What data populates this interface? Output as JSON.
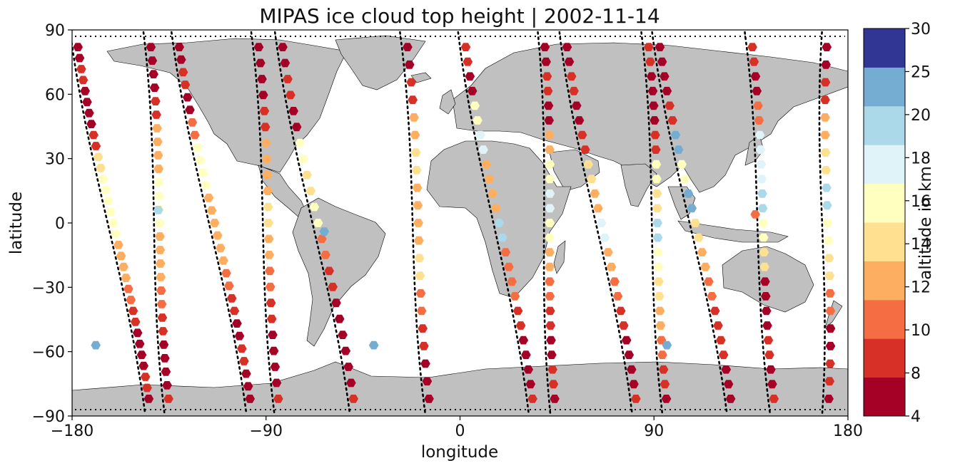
{
  "chart_data": {
    "type": "scatter",
    "title": "MIPAS ice cloud top height | 2002-11-14",
    "xlabel": "longitude",
    "ylabel": "latitude",
    "xlim": [
      -180,
      180
    ],
    "ylim": [
      -90,
      90
    ],
    "xticks": [
      -180,
      -90,
      0,
      90,
      180
    ],
    "xtick_labels": [
      "−180",
      "−90",
      "0",
      "90",
      "180"
    ],
    "yticks": [
      90,
      60,
      30,
      0,
      -30,
      -60,
      -90
    ],
    "ytick_labels": [
      "90",
      "60",
      "30",
      "0",
      "−30",
      "−60",
      "−90"
    ],
    "colorbar": {
      "label": "altitude in km",
      "bounds": [
        4,
        8,
        10,
        12,
        14,
        16,
        18,
        20,
        25,
        30
      ],
      "tick_labels": [
        "4",
        "8",
        "10",
        "12",
        "14",
        "16",
        "18",
        "20",
        "25",
        "30"
      ],
      "colors": [
        "#a50026",
        "#d73027",
        "#f46d43",
        "#fdae61",
        "#fee090",
        "#ffffbf",
        "#e0f3f8",
        "#abd9e9",
        "#74add1",
        "#313695"
      ]
    },
    "land_color": "#c0c0c0",
    "track_color": "#000000",
    "tracks": [
      {
        "lon0": -175,
        "lon1": -152,
        "colors": [
          "#a50026",
          "#d73027",
          "#a50026",
          "#a50026",
          "#d73027",
          "#fee090",
          "#ffffbf",
          "#ffffbf",
          "#ffffbf",
          "#fdae61",
          "#fdae61",
          "#f46d43",
          "#d73027",
          "#a50026",
          "#a50026",
          "#d73027",
          "#a50026"
        ]
      },
      {
        "lon0": -153,
        "lon1": -131,
        "colors": [
          "#a50026",
          "#a50026",
          "#d73027",
          "#fdae61",
          "#fdae61",
          "#ffffbf",
          "#ffffbf",
          "#fdae61",
          "#fdae61",
          "#f46d43",
          "#d73027",
          "#a50026",
          "#a50026",
          "#d73027"
        ]
      },
      {
        "lon0": -128,
        "lon1": -105,
        "colors": [
          "#a50026",
          "#d73027",
          "#a50026",
          "#f46d43",
          "#ffffbf",
          "#ffffbf",
          "#fdae61",
          "#fdae61",
          "#fdae61",
          "#f46d43",
          "#d73027",
          "#a50026",
          "#d73027",
          "#a50026",
          "#a50026"
        ]
      },
      {
        "lon0": -103,
        "lon1": -80,
        "colors": [
          "#a50026",
          "#a50026",
          "#d73027",
          "#fdae61",
          "#fdae61",
          "#fee090",
          "#fdae61",
          "#f46d43",
          "#d73027",
          "#a50026",
          "#a50026",
          "#d73027"
        ]
      },
      {
        "lon0": -80,
        "lon1": -57,
        "colors": [
          "#a50026",
          "#d73027",
          "#a50026",
          "#ffffbf",
          "#fee090",
          "#ffffbf",
          "#f46d43",
          "#d73027",
          "#a50026",
          "#a50026",
          "#a50026",
          "#d73027"
        ]
      },
      {
        "lon0": -34,
        "lon1": -10,
        "colors": [
          "#a50026",
          "#d73027",
          "#fdae61",
          "#fee090",
          "#fdae61",
          "#fdae61",
          "#fee090",
          "#f46d43",
          "#d73027",
          "#a50026",
          "#a50026"
        ]
      },
      {
        "lon0": 5,
        "lon1": 26,
        "colors": [
          "#d73027",
          "#a50026",
          "#ffffbf",
          "#e0f3f8",
          "#fdae61",
          "#fdae61",
          "#abd9e9",
          "#f46d43",
          "#f46d43",
          "#d73027",
          "#a50026",
          "#a50026",
          "#d73027"
        ]
      },
      {
        "lon0": 30,
        "lon1": 48,
        "colors": [
          "#a50026",
          "#d73027",
          "#a50026",
          "#fdae61",
          "#ffffbf",
          "#e0f3f8",
          "#ffffbf",
          "#fdae61",
          "#f46d43",
          "#d73027",
          "#a50026",
          "#d73027",
          "#a50026"
        ]
      },
      {
        "lon0": 52,
        "lon1": 74,
        "colors": [
          "#a50026",
          "#d73027",
          "#a50026",
          "#d73027",
          "#fee090",
          "#fdae61",
          "#e0f3f8",
          "#fdae61",
          "#f46d43",
          "#d73027",
          "#a50026",
          "#a50026",
          "#d73027"
        ]
      },
      {
        "lon0": 78,
        "lon1": 100,
        "colors": [
          "#d73027",
          "#a50026",
          "#a50026",
          "#d73027",
          "#ffffbf",
          "#fee090",
          "#abd9e9",
          "#ffffbf",
          "#fee090",
          "#fdae61",
          "#f46d43",
          "#d73027",
          "#a50026"
        ]
      },
      {
        "lon0": 95,
        "lon1": 118,
        "colors": [
          "#a50026",
          "#a50026",
          "#d73027",
          "#74add1",
          "#ffffbf",
          "#74add1",
          "#fee090",
          "#fdae61",
          "#f46d43",
          "#d73027",
          "#d73027",
          "#a50026",
          "#a50026"
        ]
      },
      {
        "lon0": 126,
        "lon1": 150,
        "colors": [
          "#d73027",
          "#a50026",
          "#f46d43",
          "#e0f3f8",
          "#e0f3f8",
          "#abd9e9",
          "#ffffbf",
          "#fee090",
          "#a50026",
          "#a50026",
          "#d73027",
          "#a50026",
          "#d73027"
        ]
      },
      {
        "lon0": 174,
        "lon1": 162,
        "colors": [
          "#a50026",
          "#d73027",
          "#fdae61",
          "#fee090",
          "#abd9e9",
          "#ffffbf",
          "#fee090",
          "#f46d43",
          "#a50026",
          "#d73027",
          "#a50026"
        ]
      }
    ],
    "isolated_points": [
      {
        "lon": -169,
        "lat": -57,
        "color": "#74add1"
      },
      {
        "lon": -140,
        "lat": 6,
        "color": "#abd9e9"
      },
      {
        "lon": -63,
        "lat": -4,
        "color": "#74add1"
      },
      {
        "lon": -40,
        "lat": -57,
        "color": "#74add1"
      },
      {
        "lon": 96,
        "lat": -57,
        "color": "#74add1"
      },
      {
        "lon": 137,
        "lat": 4,
        "color": "#f46d43"
      }
    ]
  }
}
